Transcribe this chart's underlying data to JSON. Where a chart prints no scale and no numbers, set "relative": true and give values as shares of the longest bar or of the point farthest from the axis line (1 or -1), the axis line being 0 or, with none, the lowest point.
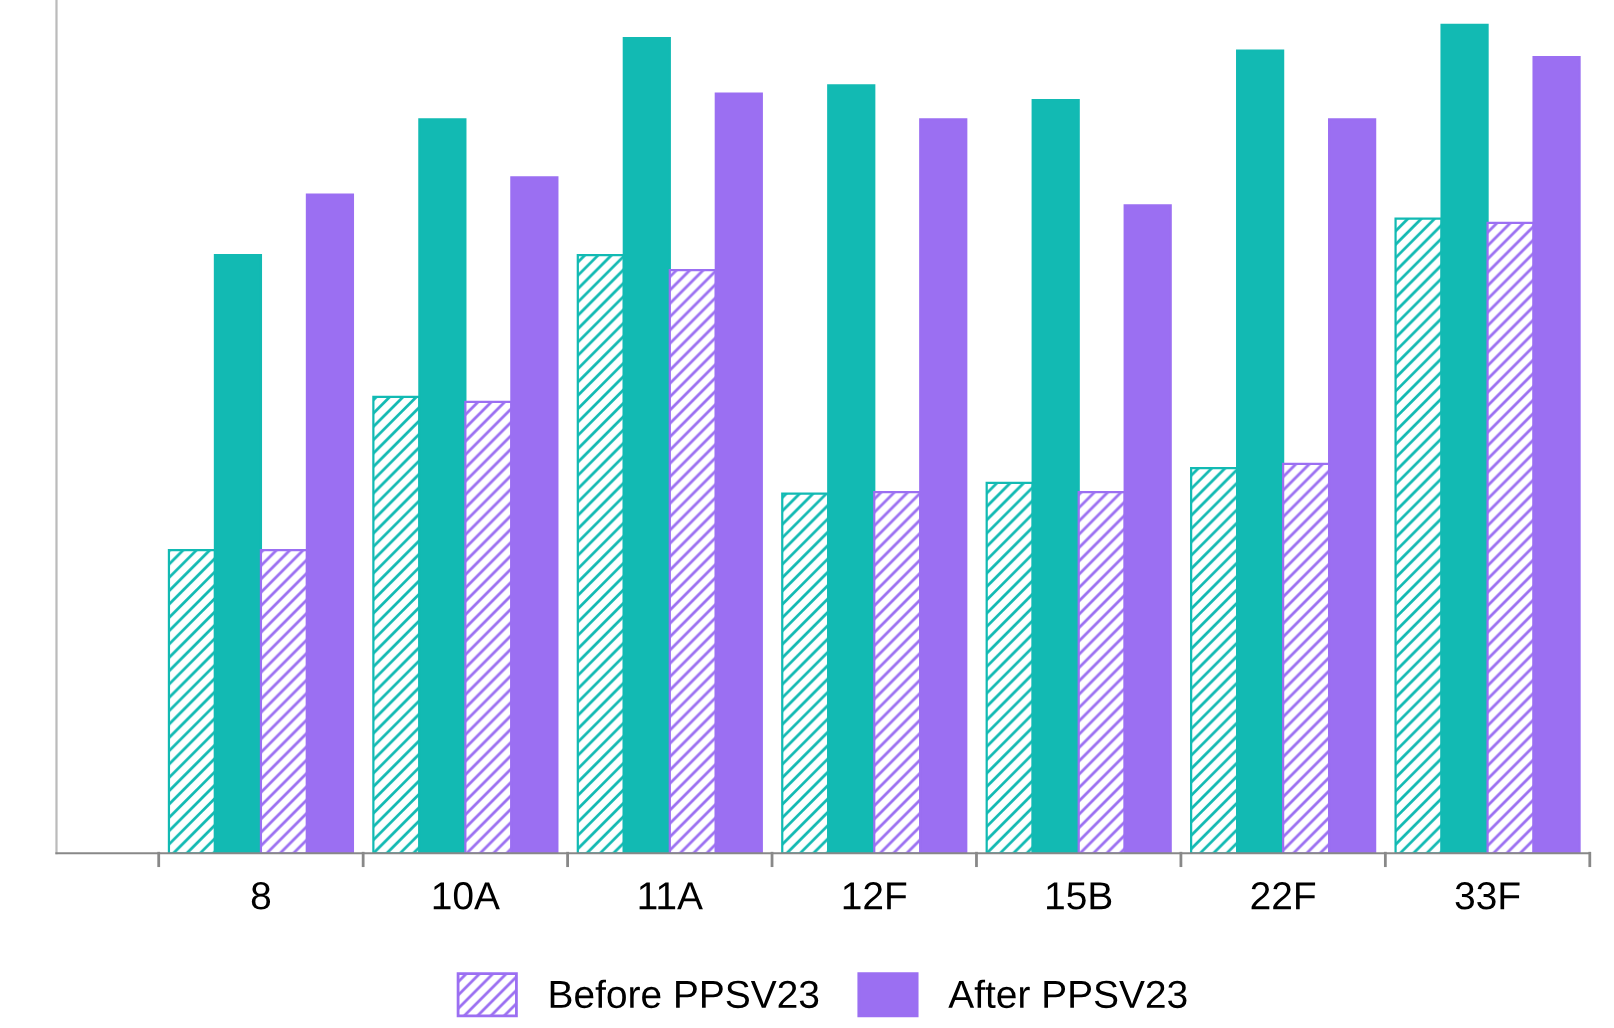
{
  "chart_data": {
    "type": "bar",
    "relative": true,
    "categories": [
      "8",
      "10A",
      "11A",
      "12F",
      "15B",
      "22F",
      "33F"
    ],
    "series": [
      {
        "color": "#12bab3",
        "values": [
          0.366,
          0.551,
          0.722,
          0.434,
          0.447,
          0.465,
          0.766
        ]
      },
      {
        "color": "#12bab3",
        "values": [
          0.722,
          0.886,
          0.984,
          0.927,
          0.909,
          0.969,
          1
        ]
      },
      {
        "name": "Before PPSV23",
        "color": "#9b6ff2",
        "values": [
          0.366,
          0.545,
          0.704,
          0.436,
          0.436,
          0.47,
          0.761
        ]
      },
      {
        "name": "After PPSV23",
        "color": "#9b6ff2",
        "values": [
          0.795,
          0.816,
          0.917,
          0.886,
          0.782,
          0.886,
          0.961
        ]
      }
    ],
    "legend": "bottom",
    "grid": false
  }
}
